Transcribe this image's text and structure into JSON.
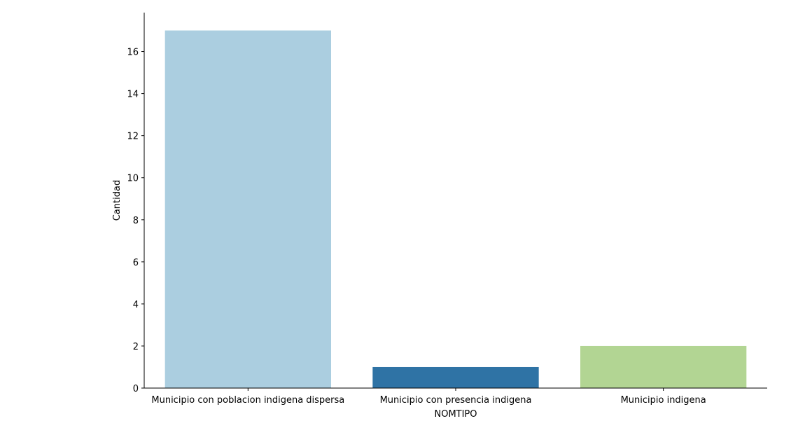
{
  "chart_data": {
    "type": "bar",
    "title": "",
    "xlabel": "NOMTIPO",
    "ylabel": "Cantidad",
    "categories": [
      "Municipio con poblacion indigena dispersa",
      "Municipio con presencia indigena",
      "Municipio indigena"
    ],
    "values": [
      17,
      1,
      2
    ],
    "colors": [
      "#abcee0",
      "#2f73a5",
      "#b2d593"
    ],
    "ylim": [
      0,
      17.85
    ],
    "yticks": [
      0,
      2,
      4,
      6,
      8,
      10,
      12,
      14,
      16
    ],
    "grid": false,
    "legend": "none"
  }
}
